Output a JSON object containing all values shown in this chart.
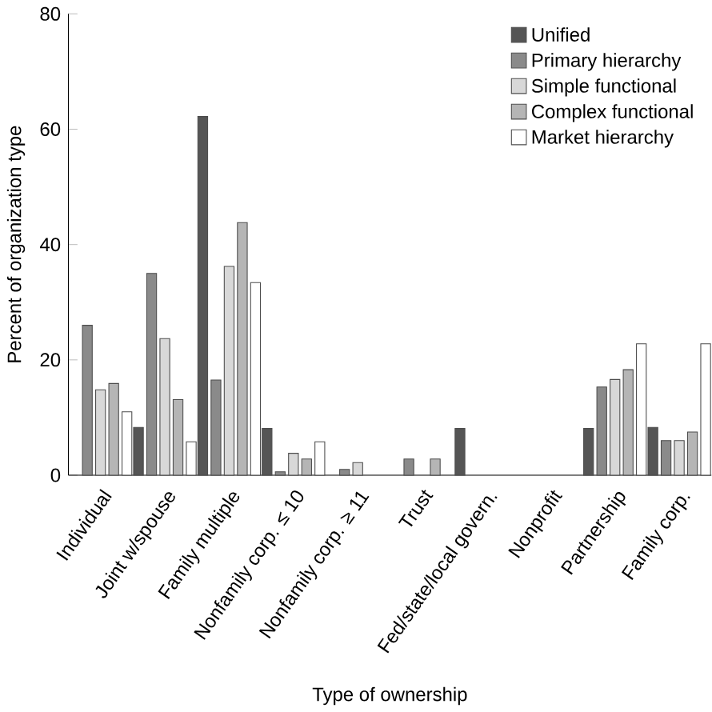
{
  "chart_data": {
    "type": "bar",
    "xlabel": "Type of ownership",
    "ylabel": "Percent of organization type",
    "categories": [
      "Individual",
      "Joint w/spouse",
      "Family multiple",
      "Nonfamily corp. ≤ 10",
      "Nonfamily corp. ≥ 11",
      "Trust",
      "Fed/state/local govern.",
      "Nonprofit",
      "Partnership",
      "Family corp."
    ],
    "series": [
      {
        "name": "Unified",
        "color": "#555555",
        "values": [
          null,
          8.3,
          62.2,
          8.1,
          null,
          null,
          8.1,
          null,
          8.1,
          8.3
        ]
      },
      {
        "name": "Primary hierarchy",
        "color": "#8a8a8a",
        "values": [
          26,
          35,
          16.5,
          0.6,
          1,
          2.8,
          null,
          null,
          15.3,
          6
        ]
      },
      {
        "name": "Simple functional",
        "color": "#d8d8d8",
        "values": [
          14.8,
          23.7,
          36.2,
          3.8,
          2.2,
          null,
          null,
          null,
          16.6,
          6
        ]
      },
      {
        "name": "Complex functional",
        "color": "#b5b5b5",
        "values": [
          15.9,
          13.1,
          43.8,
          2.8,
          null,
          2.8,
          null,
          null,
          18.3,
          7.5
        ]
      },
      {
        "name": "Market hierarchy",
        "color": "#ffffff",
        "values": [
          11,
          5.8,
          33.4,
          5.8,
          null,
          null,
          null,
          null,
          22.8,
          22.8
        ]
      }
    ],
    "ylim": [
      0,
      80
    ],
    "yticks": [
      0,
      20,
      40,
      60,
      80
    ],
    "grid": false,
    "legend": "top right"
  }
}
